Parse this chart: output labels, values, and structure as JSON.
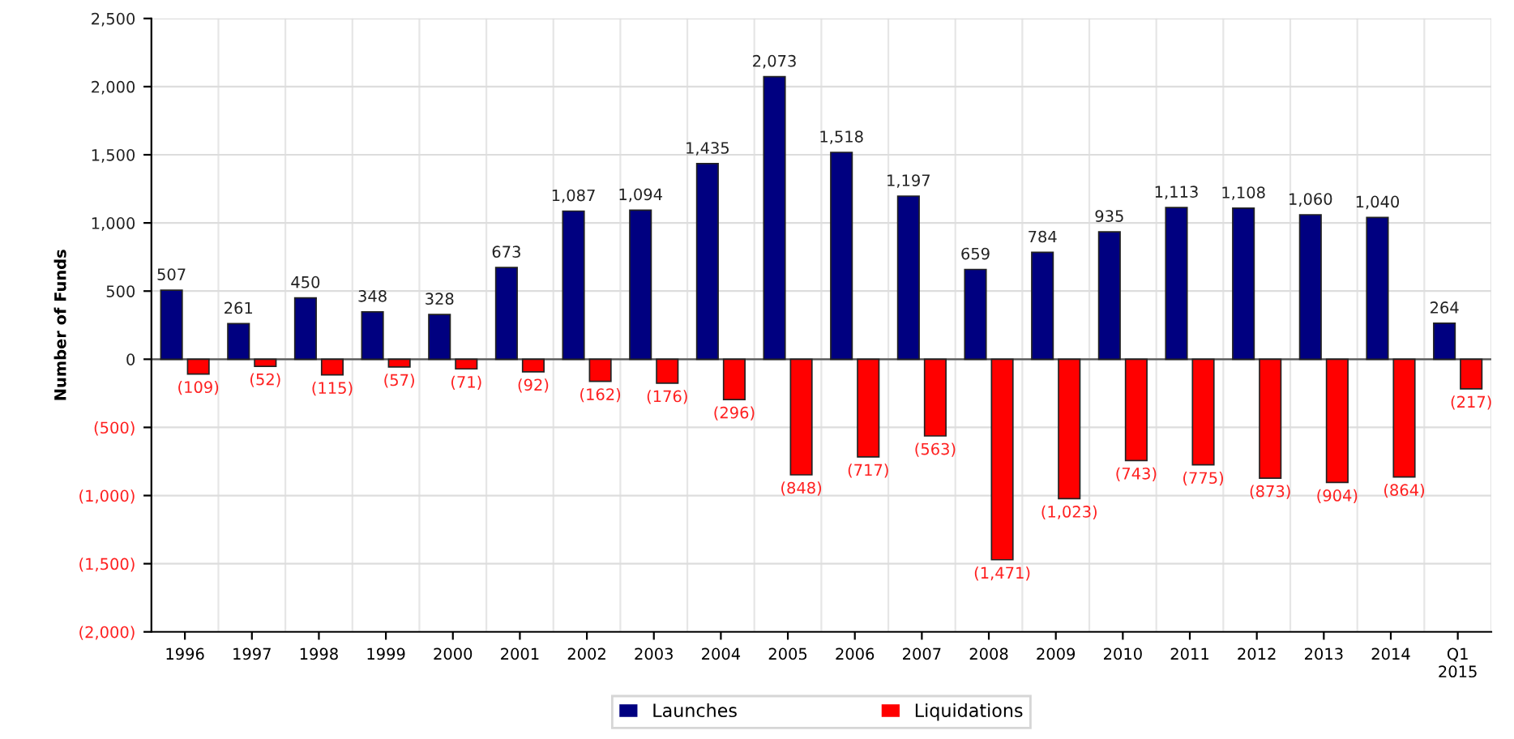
{
  "chart_data": {
    "type": "bar",
    "ylabel": "Number of Funds",
    "categories": [
      "1996",
      "1997",
      "1998",
      "1999",
      "2000",
      "2001",
      "2002",
      "2003",
      "2004",
      "2005",
      "2006",
      "2007",
      "2008",
      "2009",
      "2010",
      "2011",
      "2012",
      "2013",
      "2014",
      "Q1\n2015"
    ],
    "series": [
      {
        "name": "Launches",
        "color": "#000080",
        "values": [
          507,
          261,
          450,
          348,
          328,
          673,
          1087,
          1094,
          1435,
          2073,
          1518,
          1197,
          659,
          784,
          935,
          1113,
          1108,
          1060,
          1040,
          264
        ],
        "value_labels": [
          "507",
          "261",
          "450",
          "348",
          "328",
          "673",
          "1,087",
          "1,094",
          "1,435",
          "2,073",
          "1,518",
          "1,197",
          "659",
          "784",
          "935",
          "1,113",
          "1,108",
          "1,060",
          "1,040",
          "264"
        ]
      },
      {
        "name": "Liquidations",
        "color": "#ff0000",
        "values": [
          -109,
          -52,
          -115,
          -57,
          -71,
          -92,
          -162,
          -176,
          -296,
          -848,
          -717,
          -563,
          -1471,
          -1023,
          -743,
          -775,
          -873,
          -904,
          -864,
          -217
        ],
        "value_labels": [
          "(109)",
          "(52)",
          "(115)",
          "(57)",
          "(71)",
          "(92)",
          "(162)",
          "(176)",
          "(296)",
          "(848)",
          "(717)",
          "(563)",
          "(1,471)",
          "(1,023)",
          "(743)",
          "(775)",
          "(873)",
          "(904)",
          "(864)",
          "(217)"
        ]
      }
    ],
    "ylim": [
      -2000,
      2500
    ],
    "yticks": [
      {
        "value": -2000,
        "label": "(2,000)"
      },
      {
        "value": -1500,
        "label": "(1,500)"
      },
      {
        "value": -1000,
        "label": "(1,000)"
      },
      {
        "value": -500,
        "label": "(500)"
      },
      0,
      {
        "value": 500,
        "label": "500"
      },
      {
        "value": 1000,
        "label": "1,000"
      },
      {
        "value": 1500,
        "label": "1,500"
      },
      {
        "value": 2000,
        "label": "2,000"
      },
      {
        "value": 2500,
        "label": "2,500"
      }
    ],
    "grid": "y",
    "legend": "bottom"
  }
}
